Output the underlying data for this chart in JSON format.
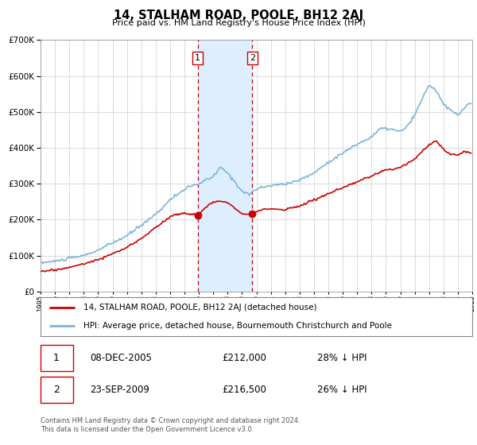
{
  "title": "14, STALHAM ROAD, POOLE, BH12 2AJ",
  "subtitle": "Price paid vs. HM Land Registry's House Price Index (HPI)",
  "legend_line1": "14, STALHAM ROAD, POOLE, BH12 2AJ (detached house)",
  "legend_line2": "HPI: Average price, detached house, Bournemouth Christchurch and Poole",
  "transaction1_date": "08-DEC-2005",
  "transaction1_price": "£212,000",
  "transaction1_hpi": "28% ↓ HPI",
  "transaction2_date": "23-SEP-2009",
  "transaction2_price": "£216,500",
  "transaction2_hpi": "26% ↓ HPI",
  "footer": "Contains HM Land Registry data © Crown copyright and database right 2024.\nThis data is licensed under the Open Government Licence v3.0.",
  "hpi_color": "#7ab4d8",
  "price_color": "#cc0000",
  "shade_color": "#ddeeff",
  "transaction_date1_x": 2005.92,
  "transaction_date2_x": 2009.72,
  "transaction1_y": 212000,
  "transaction2_y": 216500,
  "ylim": [
    0,
    700000
  ],
  "xlim_start": 1995,
  "xlim_end": 2025
}
